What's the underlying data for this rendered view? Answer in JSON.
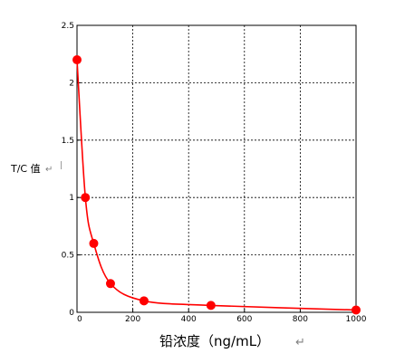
{
  "chart_data": {
    "type": "scatter",
    "title": "",
    "xlabel": "铅浓度（ng/mL）",
    "ylabel": "T/C 值",
    "xlim": [
      0,
      1000
    ],
    "ylim": [
      0,
      2.5
    ],
    "xticks": [
      "0",
      "200",
      "400",
      "600",
      "800",
      "1000"
    ],
    "yticks": [
      "0",
      "0.5",
      "1",
      "1.5",
      "2",
      "2.5"
    ],
    "grid": true,
    "legend": "none",
    "series": [
      {
        "points": [
          {
            "x": 0,
            "y": 2.2
          },
          {
            "x": 30,
            "y": 1.0
          },
          {
            "x": 60,
            "y": 0.6
          },
          {
            "x": 120,
            "y": 0.25
          },
          {
            "x": 240,
            "y": 0.1
          },
          {
            "x": 480,
            "y": 0.06
          },
          {
            "x": 1000,
            "y": 0.02
          }
        ],
        "color": "#ff0000",
        "fit_line": true
      }
    ],
    "ylabel_mark": "↵",
    "ylabel_mark2": "|",
    "xlabel_mark": "↵"
  }
}
